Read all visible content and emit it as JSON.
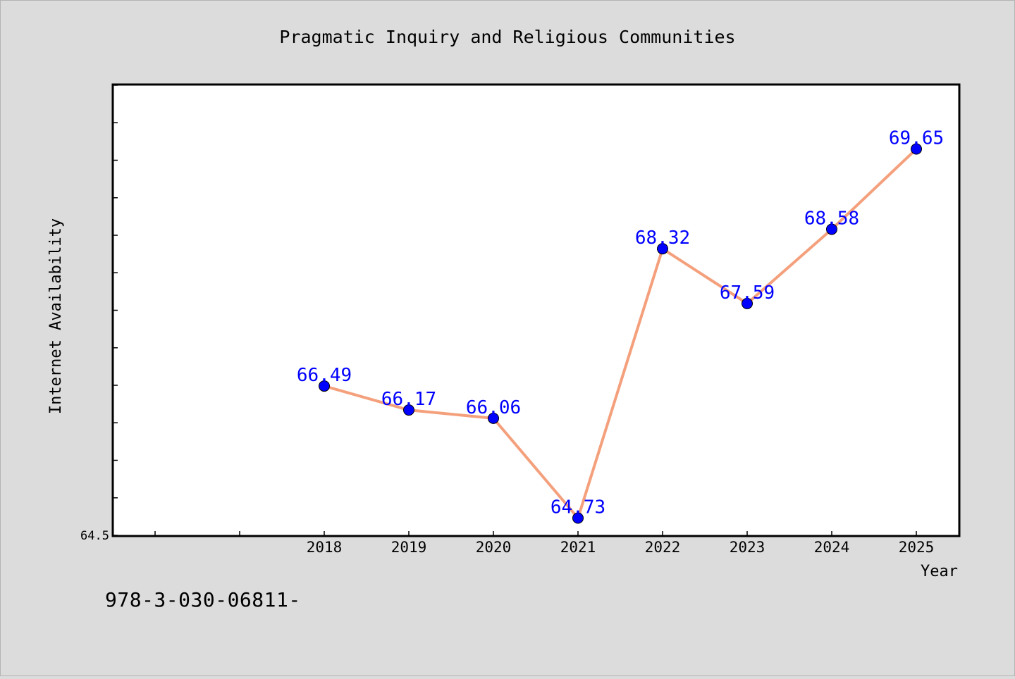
{
  "chart_data": {
    "type": "line",
    "title": "Pragmatic Inquiry and Religious Communities",
    "xlabel": "Year",
    "ylabel": "Internet Availability",
    "x": [
      "2018",
      "2019",
      "2020",
      "2021",
      "2022",
      "2023",
      "2024",
      "2025"
    ],
    "series": [
      {
        "values": [
          66.49,
          66.17,
          66.06,
          64.73,
          68.32,
          67.59,
          68.58,
          69.65
        ],
        "labels": [
          "66.49",
          "66.17",
          "66.06",
          "64.73",
          "68.32",
          "67.59",
          "68.58",
          "69.65"
        ],
        "line_color": "#f4a07c",
        "marker_color": "#0000ff",
        "label_color": "#0000ff"
      }
    ],
    "ylim": [
      64.5,
      70.5
    ],
    "y_ticks_labeled": [
      "64.5"
    ],
    "x_start_index": -2,
    "grid": false,
    "legend": "none"
  },
  "footer_text": "978-3-030-06811-",
  "colors": {
    "background": "#dcdcdc",
    "plot_background": "#ffffff",
    "axis": "#000000"
  }
}
